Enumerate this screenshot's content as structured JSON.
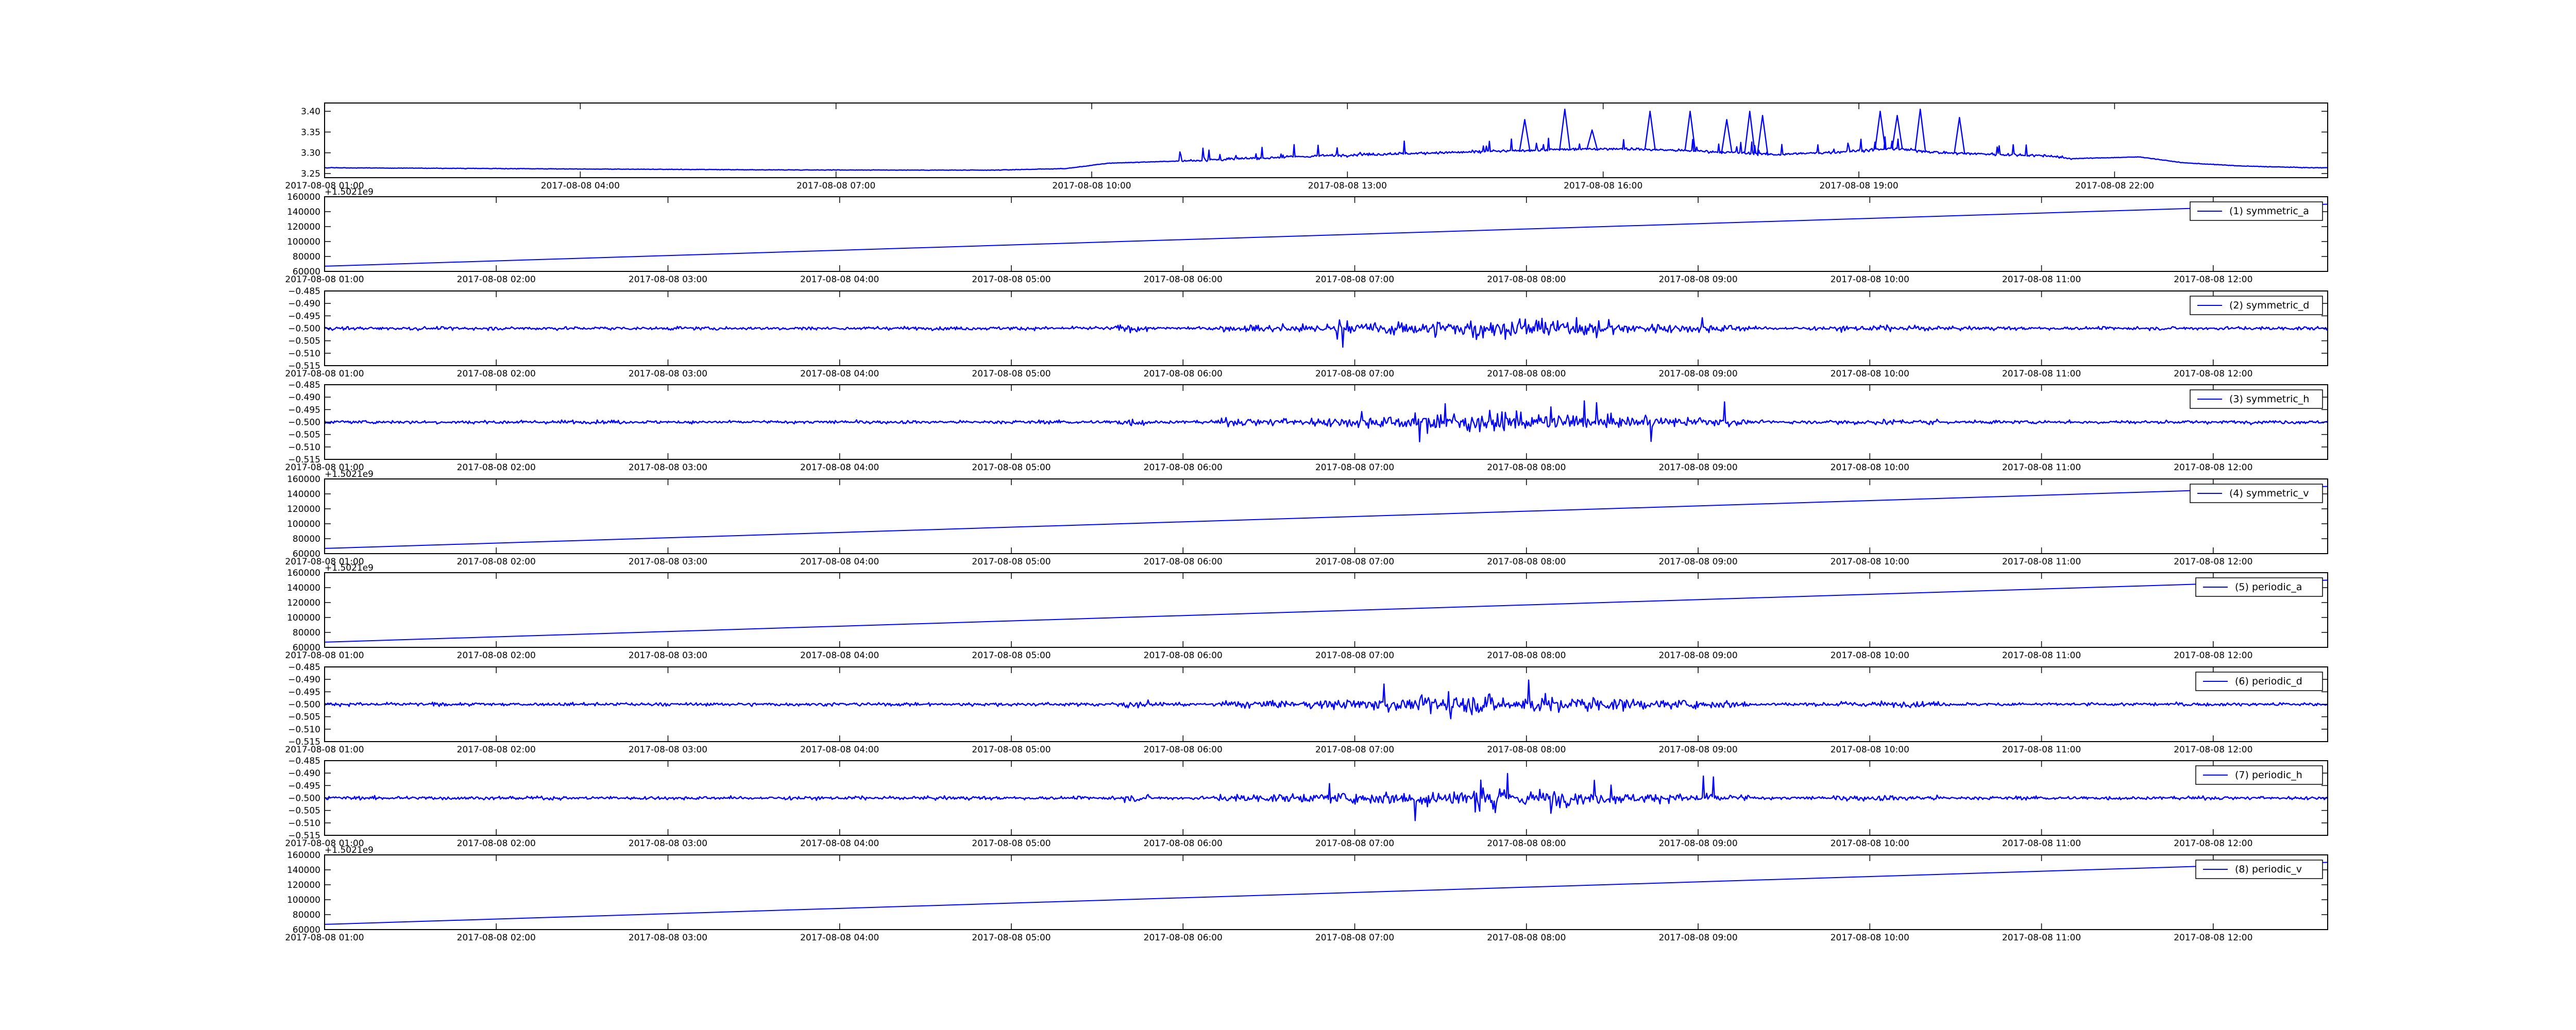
{
  "colors": {
    "line": "#0000ff",
    "axes": "#000000",
    "background": "#ffffff"
  },
  "chart_data": [
    {
      "type": "line",
      "x_type": "time",
      "xlim": [
        "2017-08-08 01:00",
        "2017-08-09 00:30"
      ],
      "xticks": [
        "2017-08-08 01:00",
        "2017-08-08 04:00",
        "2017-08-08 07:00",
        "2017-08-08 10:00",
        "2017-08-08 13:00",
        "2017-08-08 16:00",
        "2017-08-08 19:00",
        "2017-08-08 22:00"
      ],
      "ylim": [
        3.24,
        3.42
      ],
      "yticks": [
        "3.25",
        "3.30",
        "3.35",
        "3.40"
      ],
      "grid": false,
      "legend": null,
      "series": [
        {
          "signal": "ocv",
          "baseline": [
            [
              0,
              3.265
            ],
            [
              3,
              3.262
            ],
            [
              6,
              3.259
            ],
            [
              8.8,
              3.258
            ],
            [
              9.7,
              3.262
            ],
            [
              10.2,
              3.275
            ],
            [
              11,
              3.28
            ],
            [
              12.2,
              3.289
            ],
            [
              13.2,
              3.296
            ],
            [
              14.5,
              3.302
            ],
            [
              15.5,
              3.308
            ],
            [
              16.2,
              3.31
            ],
            [
              17,
              3.305
            ],
            [
              18,
              3.296
            ],
            [
              18.6,
              3.3
            ],
            [
              19.4,
              3.31
            ],
            [
              20,
              3.3
            ],
            [
              21.2,
              3.293
            ],
            [
              21.5,
              3.286
            ],
            [
              22.3,
              3.29
            ],
            [
              22.8,
              3.276
            ],
            [
              23.5,
              3.268
            ],
            [
              24.3,
              3.264
            ]
          ],
          "noise_window": [
            11,
            21.5
          ],
          "spikes": [
            [
              15.08,
              3.38
            ],
            [
              15.55,
              3.405
            ],
            [
              15.87,
              3.355
            ],
            [
              16.55,
              3.4
            ],
            [
              17.02,
              3.4
            ],
            [
              17.45,
              3.38
            ],
            [
              17.72,
              3.4
            ],
            [
              17.87,
              3.39
            ],
            [
              19.25,
              3.4
            ],
            [
              19.45,
              3.39
            ],
            [
              19.72,
              3.405
            ],
            [
              20.18,
              3.385
            ]
          ]
        }
      ]
    },
    {
      "type": "line",
      "x_type": "time",
      "xlim": [
        "2017-08-08 01:00",
        "2017-08-08 12:40"
      ],
      "xticks": [
        "2017-08-08 01:00",
        "2017-08-08 02:00",
        "2017-08-08 03:00",
        "2017-08-08 04:00",
        "2017-08-08 05:00",
        "2017-08-08 06:00",
        "2017-08-08 07:00",
        "2017-08-08 08:00",
        "2017-08-08 09:00",
        "2017-08-08 10:00",
        "2017-08-08 11:00",
        "2017-08-08 12:00"
      ],
      "ylim": [
        60000,
        160000
      ],
      "yticks": [
        "60000",
        "80000",
        "100000",
        "120000",
        "140000",
        "160000"
      ],
      "offset_text": "+1.5021e9",
      "grid": false,
      "legend": "upper right",
      "series": [
        {
          "name": "(1) symmetric_a",
          "signal": "ramp",
          "range": [
            67000,
            150000
          ]
        }
      ]
    },
    {
      "type": "line",
      "x_type": "time",
      "xlim": [
        "2017-08-08 01:00",
        "2017-08-08 12:40"
      ],
      "xticks": [
        "2017-08-08 01:00",
        "2017-08-08 02:00",
        "2017-08-08 03:00",
        "2017-08-08 04:00",
        "2017-08-08 05:00",
        "2017-08-08 06:00",
        "2017-08-08 07:00",
        "2017-08-08 08:00",
        "2017-08-08 09:00",
        "2017-08-08 10:00",
        "2017-08-08 11:00",
        "2017-08-08 12:00"
      ],
      "ylim": [
        -0.515,
        -0.485
      ],
      "yticks": [
        "−0.515",
        "−0.510",
        "−0.505",
        "−0.500",
        "−0.495",
        "−0.490",
        "−0.485"
      ],
      "grid": false,
      "legend": "upper right",
      "series": [
        {
          "name": "(2) symmetric_d",
          "signal": "noise",
          "center": -0.5
        }
      ]
    },
    {
      "type": "line",
      "x_type": "time",
      "xlim": [
        "2017-08-08 01:00",
        "2017-08-08 12:40"
      ],
      "xticks": [
        "2017-08-08 01:00",
        "2017-08-08 02:00",
        "2017-08-08 03:00",
        "2017-08-08 04:00",
        "2017-08-08 05:00",
        "2017-08-08 06:00",
        "2017-08-08 07:00",
        "2017-08-08 08:00",
        "2017-08-08 09:00",
        "2017-08-08 10:00",
        "2017-08-08 11:00",
        "2017-08-08 12:00"
      ],
      "ylim": [
        -0.515,
        -0.485
      ],
      "yticks": [
        "−0.515",
        "−0.510",
        "−0.505",
        "−0.500",
        "−0.495",
        "−0.490",
        "−0.485"
      ],
      "grid": false,
      "legend": "upper right",
      "series": [
        {
          "name": "(3) symmetric_h",
          "signal": "noise",
          "center": -0.5
        }
      ]
    },
    {
      "type": "line",
      "x_type": "time",
      "xlim": [
        "2017-08-08 01:00",
        "2017-08-08 12:40"
      ],
      "xticks": [
        "2017-08-08 01:00",
        "2017-08-08 02:00",
        "2017-08-08 03:00",
        "2017-08-08 04:00",
        "2017-08-08 05:00",
        "2017-08-08 06:00",
        "2017-08-08 07:00",
        "2017-08-08 08:00",
        "2017-08-08 09:00",
        "2017-08-08 10:00",
        "2017-08-08 11:00",
        "2017-08-08 12:00"
      ],
      "ylim": [
        60000,
        160000
      ],
      "yticks": [
        "60000",
        "80000",
        "100000",
        "120000",
        "140000",
        "160000"
      ],
      "offset_text": "+1.5021e9",
      "grid": false,
      "legend": "upper right",
      "series": [
        {
          "name": "(4) symmetric_v",
          "signal": "ramp",
          "range": [
            67000,
            150000
          ]
        }
      ]
    },
    {
      "type": "line",
      "x_type": "time",
      "xlim": [
        "2017-08-08 01:00",
        "2017-08-08 12:40"
      ],
      "xticks": [
        "2017-08-08 01:00",
        "2017-08-08 02:00",
        "2017-08-08 03:00",
        "2017-08-08 04:00",
        "2017-08-08 05:00",
        "2017-08-08 06:00",
        "2017-08-08 07:00",
        "2017-08-08 08:00",
        "2017-08-08 09:00",
        "2017-08-08 10:00",
        "2017-08-08 11:00",
        "2017-08-08 12:00"
      ],
      "ylim": [
        60000,
        160000
      ],
      "yticks": [
        "60000",
        "80000",
        "100000",
        "120000",
        "140000",
        "160000"
      ],
      "offset_text": "+1.5021e9",
      "grid": false,
      "legend": "upper right",
      "series": [
        {
          "name": "(5) periodic_a",
          "signal": "ramp",
          "range": [
            67000,
            150000
          ]
        }
      ]
    },
    {
      "type": "line",
      "x_type": "time",
      "xlim": [
        "2017-08-08 01:00",
        "2017-08-08 12:40"
      ],
      "xticks": [
        "2017-08-08 01:00",
        "2017-08-08 02:00",
        "2017-08-08 03:00",
        "2017-08-08 04:00",
        "2017-08-08 05:00",
        "2017-08-08 06:00",
        "2017-08-08 07:00",
        "2017-08-08 08:00",
        "2017-08-08 09:00",
        "2017-08-08 10:00",
        "2017-08-08 11:00",
        "2017-08-08 12:00"
      ],
      "ylim": [
        -0.515,
        -0.485
      ],
      "yticks": [
        "−0.515",
        "−0.510",
        "−0.505",
        "−0.500",
        "−0.495",
        "−0.490",
        "−0.485"
      ],
      "grid": false,
      "legend": "upper right",
      "series": [
        {
          "name": "(6) periodic_d",
          "signal": "noise",
          "center": -0.5
        }
      ]
    },
    {
      "type": "line",
      "x_type": "time",
      "xlim": [
        "2017-08-08 01:00",
        "2017-08-08 12:40"
      ],
      "xticks": [
        "2017-08-08 01:00",
        "2017-08-08 02:00",
        "2017-08-08 03:00",
        "2017-08-08 04:00",
        "2017-08-08 05:00",
        "2017-08-08 06:00",
        "2017-08-08 07:00",
        "2017-08-08 08:00",
        "2017-08-08 09:00",
        "2017-08-08 10:00",
        "2017-08-08 11:00",
        "2017-08-08 12:00"
      ],
      "ylim": [
        -0.515,
        -0.485
      ],
      "yticks": [
        "−0.515",
        "−0.510",
        "−0.505",
        "−0.500",
        "−0.495",
        "−0.490",
        "−0.485"
      ],
      "grid": false,
      "legend": "upper right",
      "series": [
        {
          "name": "(7) periodic_h",
          "signal": "noise",
          "center": -0.5
        }
      ]
    },
    {
      "type": "line",
      "x_type": "time",
      "xlim": [
        "2017-08-08 01:00",
        "2017-08-08 12:40"
      ],
      "xticks": [
        "2017-08-08 01:00",
        "2017-08-08 02:00",
        "2017-08-08 03:00",
        "2017-08-08 04:00",
        "2017-08-08 05:00",
        "2017-08-08 06:00",
        "2017-08-08 07:00",
        "2017-08-08 08:00",
        "2017-08-08 09:00",
        "2017-08-08 10:00",
        "2017-08-08 11:00",
        "2017-08-08 12:00"
      ],
      "ylim": [
        60000,
        160000
      ],
      "yticks": [
        "60000",
        "80000",
        "100000",
        "120000",
        "140000",
        "160000"
      ],
      "offset_text": "+1.5021e9",
      "grid": false,
      "legend": "upper right",
      "series": [
        {
          "name": "(8) periodic_v",
          "signal": "ramp",
          "range": [
            67000,
            150000
          ]
        }
      ]
    }
  ]
}
